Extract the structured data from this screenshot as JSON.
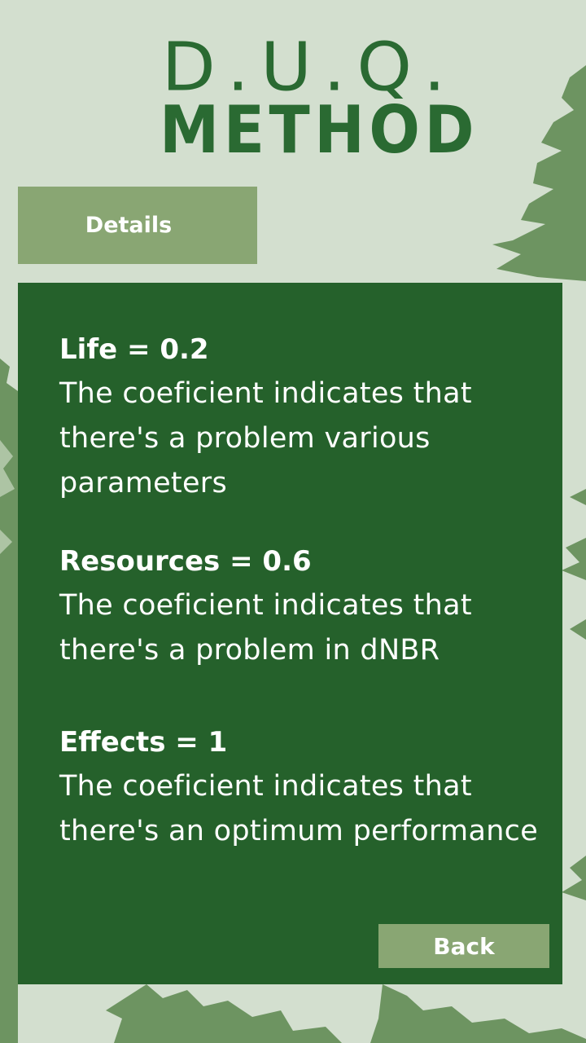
{
  "header": {
    "title_line1": "D.U.Q.",
    "title_line2": "METHOD"
  },
  "tab": {
    "label": "Details"
  },
  "entries": [
    {
      "heading": "Life = 0.2",
      "text": "The coeficient indicates that there's a problem various parameters"
    },
    {
      "heading": "Resources = 0.6",
      "text": "The coeficient indicates that there's a problem in dNBR"
    },
    {
      "heading": "Effects = 1",
      "text": "The coeficient indicates that there's an optimum performance"
    }
  ],
  "actions": {
    "back_label": "Back"
  },
  "colors": {
    "background": "#d3dfcf",
    "title": "#2a6a32",
    "card": "#25612b",
    "accent": "#89a673",
    "tree_light": "#6d9461",
    "tree_pale": "#adc4a4"
  }
}
